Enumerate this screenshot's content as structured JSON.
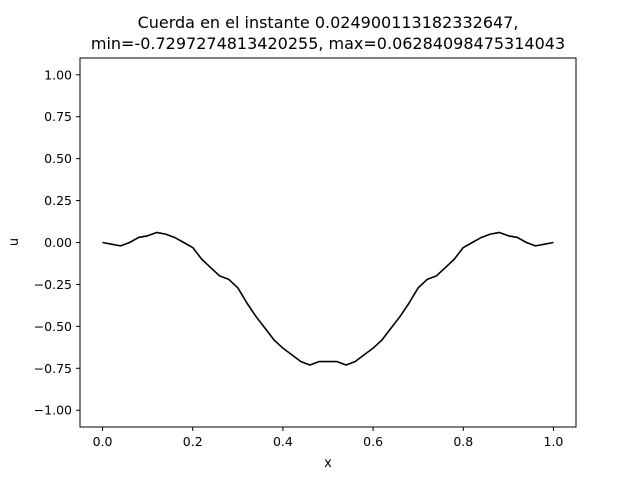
{
  "chart_data": {
    "type": "line",
    "title_line1": "Cuerda en el instante 0.024900113182332647,",
    "title_line2": "min=-0.7297274813420255, max=0.06284098475314043",
    "xlabel": "x",
    "ylabel": "u",
    "xlim": [
      -0.05,
      1.05
    ],
    "ylim": [
      -1.1,
      1.1
    ],
    "xticks": [
      0.0,
      0.2,
      0.4,
      0.6,
      0.8,
      1.0
    ],
    "xtick_labels": [
      "0.0",
      "0.2",
      "0.4",
      "0.6",
      "0.8",
      "1.0"
    ],
    "yticks": [
      1.0,
      0.75,
      0.5,
      0.25,
      0.0,
      -0.25,
      -0.5,
      -0.75,
      -1.0
    ],
    "ytick_labels": [
      "1.00",
      "0.75",
      "0.50",
      "0.25",
      "0.00",
      "−0.25",
      "−0.50",
      "−0.75",
      "−1.00"
    ],
    "grid": false,
    "line_color": "#000000",
    "x": [
      0.0,
      0.02,
      0.04,
      0.06,
      0.08,
      0.1,
      0.12,
      0.14,
      0.16,
      0.18,
      0.2,
      0.22,
      0.24,
      0.26,
      0.28,
      0.3,
      0.32,
      0.34,
      0.36,
      0.38,
      0.4,
      0.42,
      0.44,
      0.46,
      0.48,
      0.5,
      0.52,
      0.54,
      0.56,
      0.58,
      0.6,
      0.62,
      0.64,
      0.66,
      0.68,
      0.7,
      0.72,
      0.74,
      0.76,
      0.78,
      0.8,
      0.82,
      0.84,
      0.86,
      0.88,
      0.9,
      0.92,
      0.94,
      0.96,
      0.98,
      1.0
    ],
    "y": [
      0.0,
      -0.01,
      -0.02,
      0.0,
      0.03,
      0.04,
      0.06,
      0.05,
      0.03,
      0.0,
      -0.03,
      -0.1,
      -0.15,
      -0.2,
      -0.22,
      -0.27,
      -0.36,
      -0.44,
      -0.51,
      -0.58,
      -0.63,
      -0.67,
      -0.71,
      -0.73,
      -0.71,
      -0.71,
      -0.71,
      -0.73,
      -0.71,
      -0.67,
      -0.63,
      -0.58,
      -0.51,
      -0.44,
      -0.36,
      -0.27,
      -0.22,
      -0.2,
      -0.15,
      -0.1,
      -0.03,
      0.0,
      0.03,
      0.05,
      0.06,
      0.04,
      0.03,
      0.0,
      -0.02,
      -0.01,
      0.0
    ]
  }
}
